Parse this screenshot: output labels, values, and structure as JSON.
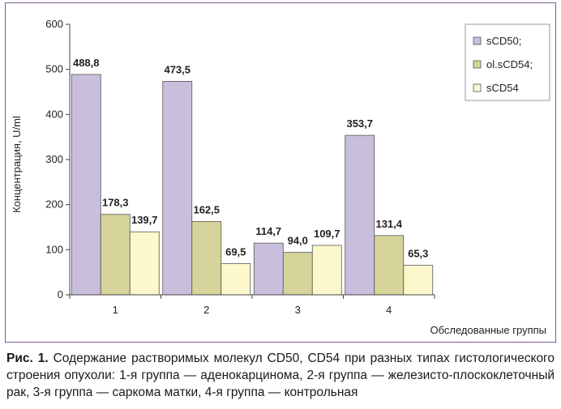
{
  "chart_data": {
    "type": "bar",
    "categories": [
      "1",
      "2",
      "3",
      "4"
    ],
    "series": [
      {
        "name": "sCD50;",
        "color": "#c9bfdc",
        "values": [
          488.8,
          473.5,
          114.7,
          353.7
        ]
      },
      {
        "name": "ol.sCD54;",
        "color": "#d6d49a",
        "values": [
          178.3,
          162.5,
          94.0,
          131.4
        ]
      },
      {
        "name": "sCD54",
        "color": "#fcf8cc",
        "values": [
          139.7,
          69.5,
          109.7,
          65.3
        ]
      }
    ],
    "data_labels": [
      [
        "488,8",
        "473,5",
        "114,7",
        "353,7"
      ],
      [
        "178,3",
        "162,5",
        "94,0",
        "131,4"
      ],
      [
        "139,7",
        "69,5",
        "109,7",
        "65,3"
      ]
    ],
    "yticks": [
      "0",
      "100",
      "200",
      "300",
      "400",
      "500",
      "600"
    ],
    "ylim": [
      0,
      600
    ],
    "ylabel": "Концентрация, U/ml",
    "xlabel": "Обследованные группы",
    "legend_position": "top-right",
    "grid": false
  },
  "caption": {
    "label": "Рис. 1.",
    "text": " Содержание растворимых молекул CD50, CD54 при разных типах гистологического строения опухоли: 1-я группа — аденокарцинома, 2-я группа — железисто-плоскоклеточный рак, 3-я группа — саркома матки, 4-я группа — контрольная"
  },
  "colors": {
    "frame": "#7a5a8e",
    "bar_stroke": "#555555",
    "axis": "#444444"
  }
}
